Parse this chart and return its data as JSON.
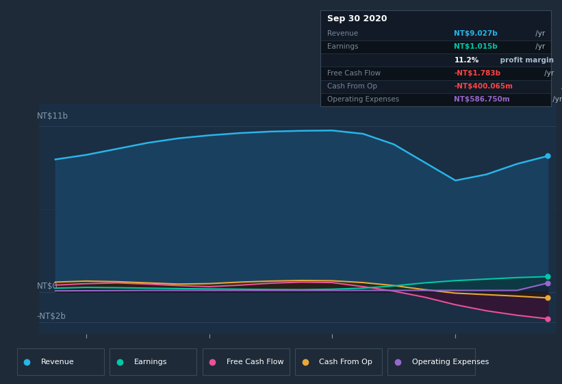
{
  "bg_color": "#1e2a38",
  "plot_bg_color": "#1a2e44",
  "grid_color": "#2a3f55",
  "text_color": "#8899aa",
  "fig_width": 8.21,
  "fig_height": 5.6,
  "dpi": 100,
  "series": {
    "Revenue": {
      "color": "#29b5e8",
      "fill_color": "#1a4060",
      "x": [
        2016.75,
        2017.0,
        2017.25,
        2017.5,
        2017.75,
        2018.0,
        2018.25,
        2018.5,
        2018.75,
        2019.0,
        2019.25,
        2019.5,
        2019.75,
        2020.0,
        2020.25,
        2020.5,
        2020.75
      ],
      "y": [
        8800000000.0,
        9100000000.0,
        9500000000.0,
        9900000000.0,
        10200000000.0,
        10400000000.0,
        10550000000.0,
        10650000000.0,
        10700000000.0,
        10720000000.0,
        10500000000.0,
        9800000000.0,
        8600000000.0,
        7400000000.0,
        7800000000.0,
        8500000000.0,
        9027000000.0
      ]
    },
    "Earnings": {
      "color": "#00c9a7",
      "fill_color": "#00332a",
      "x": [
        2016.75,
        2017.0,
        2017.25,
        2017.5,
        2017.75,
        2018.0,
        2018.25,
        2018.5,
        2018.75,
        2019.0,
        2019.25,
        2019.5,
        2019.75,
        2020.0,
        2020.25,
        2020.5,
        2020.75
      ],
      "y": [
        250000000.0,
        300000000.0,
        280000000.0,
        250000000.0,
        220000000.0,
        200000000.0,
        180000000.0,
        160000000.0,
        150000000.0,
        180000000.0,
        250000000.0,
        400000000.0,
        600000000.0,
        750000000.0,
        850000000.0,
        950000000.0,
        1015000000.0
      ]
    },
    "Free Cash Flow": {
      "color": "#e8529a",
      "fill_color": "#3a1030",
      "x": [
        2016.75,
        2017.0,
        2017.25,
        2017.5,
        2017.75,
        2018.0,
        2018.25,
        2018.5,
        2018.75,
        2019.0,
        2019.25,
        2019.5,
        2019.75,
        2020.0,
        2020.25,
        2020.5,
        2020.75
      ],
      "y": [
        450000000.0,
        550000000.0,
        600000000.0,
        520000000.0,
        420000000.0,
        350000000.0,
        450000000.0,
        580000000.0,
        650000000.0,
        620000000.0,
        350000000.0,
        50000000.0,
        -350000000.0,
        -850000000.0,
        -1250000000.0,
        -1550000000.0,
        -1783000000.0
      ]
    },
    "Cash From Op": {
      "color": "#e8a838",
      "fill_color": "#2a2000",
      "x": [
        2016.75,
        2017.0,
        2017.25,
        2017.5,
        2017.75,
        2018.0,
        2018.25,
        2018.5,
        2018.75,
        2019.0,
        2019.25,
        2019.5,
        2019.75,
        2020.0,
        2020.25,
        2020.5,
        2020.75
      ],
      "y": [
        650000000.0,
        720000000.0,
        680000000.0,
        600000000.0,
        520000000.0,
        550000000.0,
        650000000.0,
        720000000.0,
        760000000.0,
        740000000.0,
        620000000.0,
        420000000.0,
        150000000.0,
        -80000000.0,
        -180000000.0,
        -280000000.0,
        -400000000.0
      ]
    },
    "Operating Expenses": {
      "color": "#9966cc",
      "fill_color": "#1e0a3a",
      "x": [
        2016.75,
        2017.0,
        2017.25,
        2017.5,
        2017.75,
        2018.0,
        2018.25,
        2018.5,
        2018.75,
        2019.0,
        2019.25,
        2019.5,
        2019.75,
        2020.0,
        2020.25,
        2020.5,
        2020.75
      ],
      "y": [
        70000000.0,
        80000000.0,
        90000000.0,
        100000000.0,
        100000000.0,
        100000000.0,
        100000000.0,
        100000000.0,
        100000000.0,
        100000000.0,
        100000000.0,
        100000000.0,
        100000000.0,
        100000000.0,
        100000000.0,
        100000000.0,
        587000000.0
      ]
    }
  },
  "legend_items": [
    {
      "label": "Revenue",
      "color": "#29b5e8"
    },
    {
      "label": "Earnings",
      "color": "#00c9a7"
    },
    {
      "label": "Free Cash Flow",
      "color": "#e8529a"
    },
    {
      "label": "Cash From Op",
      "color": "#e8a838"
    },
    {
      "label": "Operating Expenses",
      "color": "#9966cc"
    }
  ],
  "info_box": {
    "title": "Sep 30 2020",
    "rows": [
      {
        "label": "Revenue",
        "value": "NT$9.027b",
        "value_color": "#29b5e8",
        "suffix": " /yr"
      },
      {
        "label": "Earnings",
        "value": "NT$1.015b",
        "value_color": "#00c9a7",
        "suffix": " /yr"
      },
      {
        "label": "",
        "value": "11.2%",
        "value_color": "#ffffff",
        "suffix": " profit margin",
        "suffix_bold": true
      },
      {
        "label": "Free Cash Flow",
        "value": "-NT$1.783b",
        "value_color": "#ff4444",
        "suffix": " /yr"
      },
      {
        "label": "Cash From Op",
        "value": "-NT$400.065m",
        "value_color": "#ff4444",
        "suffix": " /yr"
      },
      {
        "label": "Operating Expenses",
        "value": "NT$586.750m",
        "value_color": "#9966cc",
        "suffix": " /yr"
      }
    ]
  }
}
